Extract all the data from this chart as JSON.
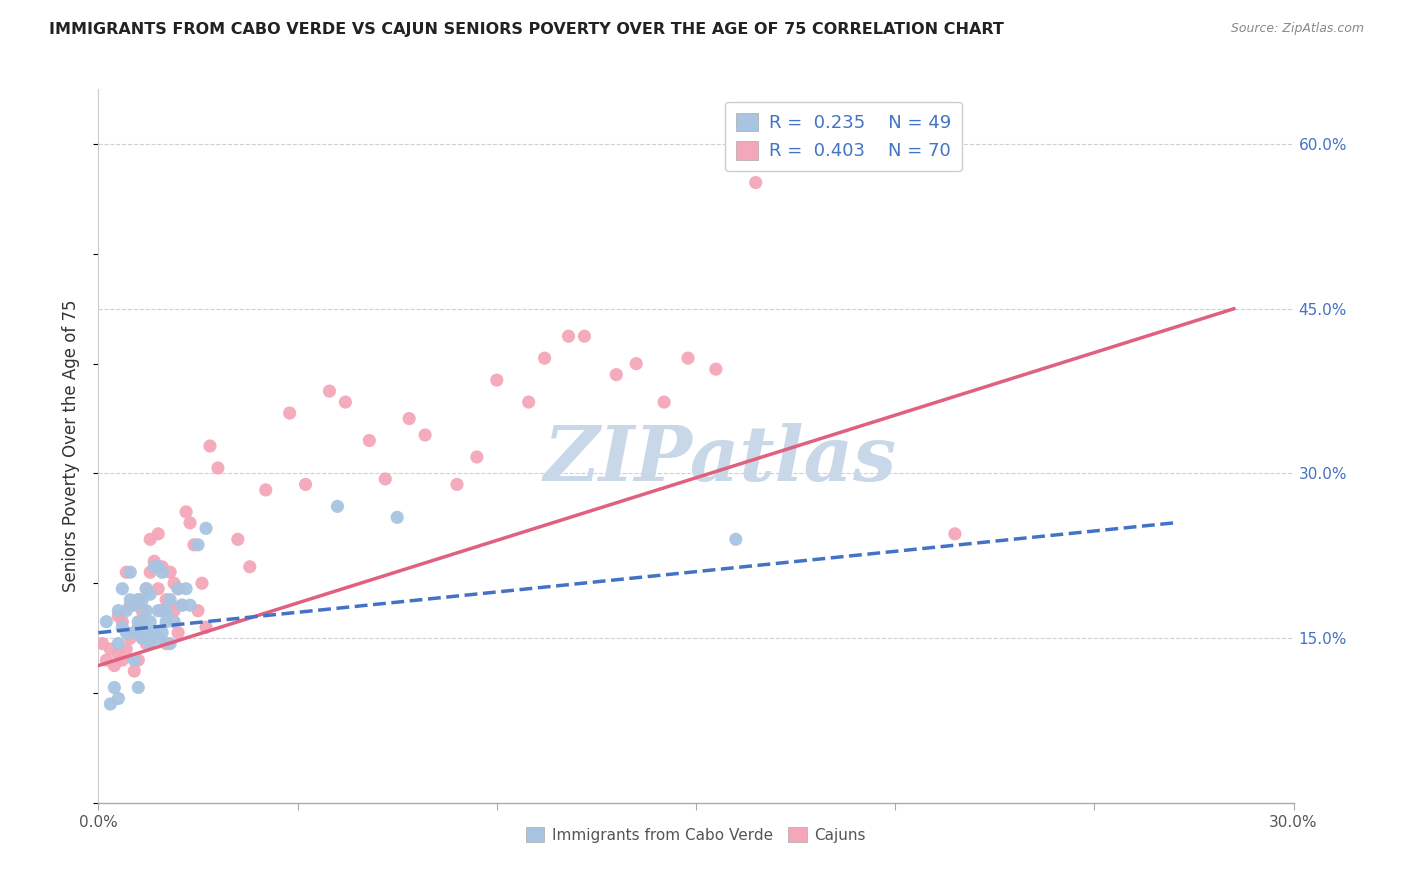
{
  "title": "IMMIGRANTS FROM CABO VERDE VS CAJUN SENIORS POVERTY OVER THE AGE OF 75 CORRELATION CHART",
  "source": "Source: ZipAtlas.com",
  "ylabel": "Seniors Poverty Over the Age of 75",
  "xlim": [
    0.0,
    0.3
  ],
  "ylim": [
    0.0,
    0.65
  ],
  "xticks": [
    0.0,
    0.05,
    0.1,
    0.15,
    0.2,
    0.25,
    0.3
  ],
  "xticklabels": [
    "0.0%",
    "",
    "",
    "",
    "",
    "",
    "30.0%"
  ],
  "yticks_right": [
    0.15,
    0.3,
    0.45,
    0.6
  ],
  "ytick_labels_right": [
    "15.0%",
    "30.0%",
    "45.0%",
    "60.0%"
  ],
  "cabo_color": "#a8c4e0",
  "cajun_color": "#f4a7b9",
  "cabo_line_color": "#4472c4",
  "cajun_line_color": "#e06080",
  "watermark": "ZIPatlas",
  "watermark_color": "#c8d8e8",
  "cabo_scatter_x": [
    0.002,
    0.003,
    0.004,
    0.005,
    0.005,
    0.005,
    0.006,
    0.006,
    0.007,
    0.007,
    0.008,
    0.008,
    0.009,
    0.009,
    0.009,
    0.01,
    0.01,
    0.01,
    0.011,
    0.011,
    0.011,
    0.012,
    0.012,
    0.012,
    0.013,
    0.013,
    0.013,
    0.014,
    0.014,
    0.015,
    0.015,
    0.015,
    0.016,
    0.016,
    0.016,
    0.017,
    0.017,
    0.018,
    0.018,
    0.019,
    0.02,
    0.021,
    0.022,
    0.023,
    0.025,
    0.027,
    0.06,
    0.075,
    0.16
  ],
  "cabo_scatter_y": [
    0.165,
    0.09,
    0.105,
    0.095,
    0.145,
    0.175,
    0.16,
    0.195,
    0.175,
    0.155,
    0.185,
    0.21,
    0.13,
    0.155,
    0.18,
    0.105,
    0.165,
    0.185,
    0.15,
    0.165,
    0.185,
    0.155,
    0.175,
    0.195,
    0.145,
    0.165,
    0.19,
    0.155,
    0.215,
    0.15,
    0.175,
    0.215,
    0.155,
    0.175,
    0.21,
    0.165,
    0.175,
    0.145,
    0.185,
    0.165,
    0.195,
    0.18,
    0.195,
    0.18,
    0.235,
    0.25,
    0.27,
    0.26,
    0.24
  ],
  "cajun_scatter_x": [
    0.001,
    0.002,
    0.003,
    0.004,
    0.005,
    0.005,
    0.006,
    0.006,
    0.007,
    0.007,
    0.008,
    0.008,
    0.009,
    0.009,
    0.01,
    0.01,
    0.01,
    0.011,
    0.011,
    0.012,
    0.012,
    0.013,
    0.013,
    0.014,
    0.015,
    0.015,
    0.016,
    0.016,
    0.017,
    0.017,
    0.018,
    0.018,
    0.019,
    0.019,
    0.02,
    0.02,
    0.021,
    0.022,
    0.023,
    0.024,
    0.025,
    0.026,
    0.027,
    0.028,
    0.03,
    0.035,
    0.038,
    0.042,
    0.048,
    0.052,
    0.058,
    0.062,
    0.068,
    0.072,
    0.078,
    0.082,
    0.09,
    0.095,
    0.1,
    0.108,
    0.112,
    0.118,
    0.122,
    0.13,
    0.135,
    0.142,
    0.148,
    0.155,
    0.165,
    0.215
  ],
  "cajun_scatter_y": [
    0.145,
    0.13,
    0.14,
    0.125,
    0.135,
    0.17,
    0.13,
    0.165,
    0.14,
    0.21,
    0.15,
    0.18,
    0.12,
    0.155,
    0.13,
    0.16,
    0.185,
    0.15,
    0.175,
    0.145,
    0.195,
    0.21,
    0.24,
    0.22,
    0.195,
    0.245,
    0.175,
    0.215,
    0.145,
    0.185,
    0.18,
    0.21,
    0.175,
    0.2,
    0.155,
    0.195,
    0.18,
    0.265,
    0.255,
    0.235,
    0.175,
    0.2,
    0.16,
    0.325,
    0.305,
    0.24,
    0.215,
    0.285,
    0.355,
    0.29,
    0.375,
    0.365,
    0.33,
    0.295,
    0.35,
    0.335,
    0.29,
    0.315,
    0.385,
    0.365,
    0.405,
    0.425,
    0.425,
    0.39,
    0.4,
    0.365,
    0.405,
    0.395,
    0.565,
    0.245
  ],
  "cabo_line_x0": 0.0,
  "cabo_line_y0": 0.155,
  "cabo_line_x1": 0.27,
  "cabo_line_y1": 0.255,
  "cajun_line_x0": 0.0,
  "cajun_line_y0": 0.125,
  "cajun_line_x1": 0.285,
  "cajun_line_y1": 0.45
}
